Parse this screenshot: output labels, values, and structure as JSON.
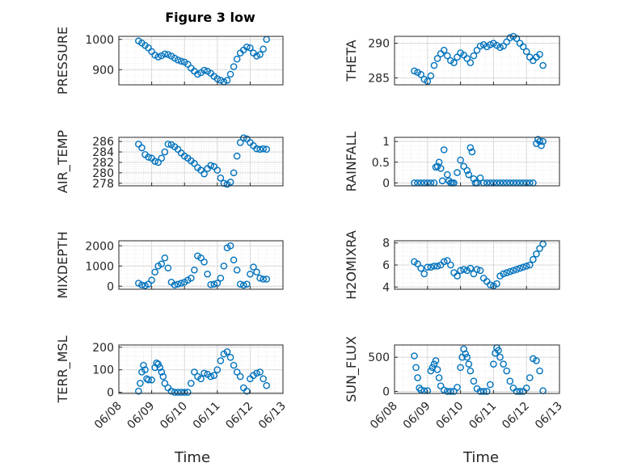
{
  "figure": {
    "title": "Figure 3 low",
    "xlabel": "Time",
    "marker_color": "#0072BD",
    "x_ticks": [
      "06/08",
      "06/09",
      "06/10",
      "06/11",
      "06/12",
      "06/13"
    ]
  },
  "chart_data": [
    {
      "type": "scatter",
      "name": "pressure",
      "ylabel": "PRESSURE",
      "ylim": [
        850,
        1010
      ],
      "yticks": [
        {
          "v": 900,
          "label": "900"
        },
        {
          "v": 1000,
          "label": "1000"
        }
      ],
      "xlim": [
        0,
        5
      ],
      "x": [
        0.6,
        0.7,
        0.8,
        0.9,
        1.0,
        1.1,
        1.2,
        1.3,
        1.4,
        1.5,
        1.6,
        1.7,
        1.8,
        1.9,
        2.0,
        2.1,
        2.2,
        2.3,
        2.4,
        2.5,
        2.6,
        2.7,
        2.8,
        2.9,
        3.0,
        3.1,
        3.2,
        3.3,
        3.4,
        3.5,
        3.6,
        3.7,
        3.8,
        3.9,
        4.0,
        4.1,
        4.2,
        4.3,
        4.4,
        4.5
      ],
      "y": [
        995,
        988,
        980,
        972,
        960,
        948,
        942,
        946,
        952,
        950,
        945,
        938,
        932,
        928,
        925,
        918,
        905,
        895,
        885,
        890,
        898,
        895,
        888,
        878,
        870,
        865,
        860,
        865,
        885,
        910,
        935,
        955,
        965,
        975,
        972,
        955,
        945,
        950,
        968,
        1000
      ]
    },
    {
      "type": "scatter",
      "name": "theta",
      "ylabel": "THETA",
      "ylim": [
        284,
        291
      ],
      "yticks": [
        {
          "v": 285,
          "label": "285"
        },
        {
          "v": 290,
          "label": "290"
        }
      ],
      "xlim": [
        0,
        5
      ],
      "x": [
        0.6,
        0.7,
        0.8,
        0.9,
        1.0,
        1.1,
        1.2,
        1.3,
        1.4,
        1.5,
        1.6,
        1.7,
        1.8,
        1.9,
        2.0,
        2.1,
        2.2,
        2.3,
        2.4,
        2.5,
        2.6,
        2.7,
        2.8,
        2.9,
        3.0,
        3.1,
        3.2,
        3.3,
        3.4,
        3.5,
        3.6,
        3.7,
        3.8,
        3.9,
        4.0,
        4.1,
        4.2,
        4.3,
        4.4,
        4.5
      ],
      "y": [
        286,
        285.8,
        285.5,
        284.8,
        284.5,
        285.3,
        286.8,
        287.8,
        288.5,
        289,
        288.2,
        287.5,
        287.2,
        288,
        288.6,
        288.3,
        287.8,
        287.2,
        288.2,
        289,
        289.6,
        289.8,
        289.5,
        289.8,
        290,
        289.7,
        289.4,
        289.6,
        290.2,
        290.8,
        291,
        290.7,
        290,
        289.5,
        288.8,
        288,
        287.5,
        288,
        288.4,
        286.8
      ]
    },
    {
      "type": "scatter",
      "name": "air-temp",
      "ylabel": "AIR_TEMP",
      "ylim": [
        277.5,
        286.8
      ],
      "yticks": [
        {
          "v": 278,
          "label": "278"
        },
        {
          "v": 280,
          "label": "280"
        },
        {
          "v": 282,
          "label": "282"
        },
        {
          "v": 284,
          "label": "284"
        },
        {
          "v": 286,
          "label": "286"
        }
      ],
      "xlim": [
        0,
        5
      ],
      "x": [
        0.6,
        0.7,
        0.8,
        0.9,
        1.0,
        1.1,
        1.2,
        1.3,
        1.4,
        1.5,
        1.6,
        1.7,
        1.8,
        1.9,
        2.0,
        2.1,
        2.2,
        2.3,
        2.4,
        2.5,
        2.6,
        2.7,
        2.8,
        2.9,
        3.0,
        3.1,
        3.2,
        3.3,
        3.4,
        3.5,
        3.6,
        3.7,
        3.8,
        3.9,
        4.0,
        4.1,
        4.2,
        4.3,
        4.4,
        4.5
      ],
      "y": [
        285.5,
        284.8,
        283.5,
        283,
        282.8,
        282.2,
        282,
        282.8,
        284,
        285.5,
        285.4,
        285,
        284.5,
        283.8,
        283.2,
        282.8,
        282.3,
        281.8,
        281,
        280.5,
        279.8,
        280.8,
        281.4,
        281.2,
        280.5,
        279,
        278,
        277.8,
        278.2,
        280,
        283.2,
        285.8,
        286.7,
        286.5,
        285.8,
        285.2,
        284.6,
        284.5,
        284.6,
        284.5
      ]
    },
    {
      "type": "scatter",
      "name": "rainfall",
      "ylabel": "RAINFALL",
      "ylim": [
        -0.07,
        1.1
      ],
      "yticks": [
        {
          "v": 0,
          "label": "0"
        },
        {
          "v": 0.5,
          "label": "0.5"
        },
        {
          "v": 1,
          "label": "1"
        }
      ],
      "xlim": [
        0,
        5
      ],
      "x": [
        0.6,
        0.7,
        0.8,
        0.9,
        1.0,
        1.1,
        1.2,
        1.25,
        1.3,
        1.35,
        1.4,
        1.45,
        1.5,
        1.6,
        1.65,
        1.7,
        1.75,
        1.8,
        1.9,
        2.0,
        2.1,
        2.2,
        2.25,
        2.3,
        2.35,
        2.4,
        2.45,
        2.5,
        2.6,
        2.7,
        2.8,
        2.9,
        3.0,
        3.1,
        3.2,
        3.3,
        3.4,
        3.5,
        3.6,
        3.7,
        3.8,
        3.9,
        4.0,
        4.1,
        4.2,
        4.3,
        4.35,
        4.4,
        4.45,
        4.5
      ],
      "y": [
        0,
        0,
        0,
        0,
        0,
        0,
        0,
        0.38,
        0.4,
        0.5,
        0.35,
        0.05,
        0.8,
        0.2,
        0.05,
        0,
        0,
        0,
        0.25,
        0.55,
        0.4,
        0.3,
        0.2,
        0.85,
        0.75,
        0.1,
        0,
        0,
        0.12,
        0,
        0,
        0,
        0,
        0,
        0,
        0,
        0,
        0,
        0,
        0,
        0,
        0,
        0,
        0,
        0,
        0.95,
        1.05,
        1.0,
        0.9,
        1.0
      ]
    },
    {
      "type": "scatter",
      "name": "mixdepth",
      "ylabel": "MIXDEPTH",
      "ylim": [
        -150,
        2250
      ],
      "yticks": [
        {
          "v": 0,
          "label": "0"
        },
        {
          "v": 1000,
          "label": "1000"
        },
        {
          "v": 2000,
          "label": "2000"
        }
      ],
      "xlim": [
        0,
        5
      ],
      "x": [
        0.6,
        0.7,
        0.8,
        0.9,
        1.0,
        1.1,
        1.2,
        1.3,
        1.4,
        1.5,
        1.6,
        1.7,
        1.8,
        1.9,
        2.0,
        2.1,
        2.2,
        2.3,
        2.4,
        2.5,
        2.6,
        2.7,
        2.8,
        2.9,
        3.0,
        3.1,
        3.2,
        3.3,
        3.4,
        3.5,
        3.6,
        3.7,
        3.8,
        3.9,
        4.0,
        4.1,
        4.2,
        4.3,
        4.4,
        4.5
      ],
      "y": [
        150,
        60,
        30,
        100,
        300,
        700,
        1000,
        1100,
        1400,
        900,
        200,
        60,
        100,
        150,
        200,
        300,
        400,
        800,
        1500,
        1400,
        1200,
        600,
        80,
        100,
        150,
        400,
        1000,
        1900,
        2000,
        1300,
        800,
        100,
        50,
        100,
        600,
        950,
        700,
        400,
        350,
        350
      ]
    },
    {
      "type": "scatter",
      "name": "h2omixra",
      "ylabel": "H2OMIXRA",
      "ylim": [
        3.8,
        8.2
      ],
      "yticks": [
        {
          "v": 4,
          "label": "4"
        },
        {
          "v": 6,
          "label": "6"
        },
        {
          "v": 8,
          "label": "8"
        }
      ],
      "xlim": [
        0,
        5
      ],
      "x": [
        0.6,
        0.7,
        0.8,
        0.9,
        1.0,
        1.1,
        1.2,
        1.3,
        1.4,
        1.5,
        1.6,
        1.7,
        1.8,
        1.9,
        2.0,
        2.1,
        2.2,
        2.3,
        2.4,
        2.5,
        2.6,
        2.7,
        2.8,
        2.9,
        3.0,
        3.1,
        3.2,
        3.3,
        3.4,
        3.5,
        3.6,
        3.7,
        3.8,
        3.9,
        4.0,
        4.1,
        4.2,
        4.3,
        4.4,
        4.5
      ],
      "y": [
        6.3,
        6.1,
        5.7,
        5.2,
        5.8,
        5.8,
        5.9,
        5.9,
        6.0,
        6.3,
        6.4,
        6.0,
        5.3,
        5.0,
        5.5,
        5.6,
        5.5,
        5.7,
        5.2,
        5.6,
        5.5,
        4.8,
        4.5,
        4.2,
        4.1,
        4.3,
        5.0,
        5.2,
        5.3,
        5.4,
        5.5,
        5.6,
        5.7,
        5.8,
        5.9,
        6.0,
        6.5,
        7.0,
        7.5,
        7.9
      ]
    },
    {
      "type": "scatter",
      "name": "terr-msl",
      "ylabel": "TERR_MSL",
      "ylim": [
        -5,
        210
      ],
      "yticks": [
        {
          "v": 0,
          "label": "0"
        },
        {
          "v": 100,
          "label": "100"
        },
        {
          "v": 200,
          "label": "200"
        }
      ],
      "xlim": [
        0,
        5
      ],
      "x": [
        0.6,
        0.65,
        0.7,
        0.75,
        0.8,
        0.85,
        0.9,
        1.0,
        1.1,
        1.15,
        1.2,
        1.25,
        1.3,
        1.35,
        1.4,
        1.5,
        1.6,
        1.7,
        1.8,
        1.9,
        2.0,
        2.1,
        2.2,
        2.3,
        2.4,
        2.5,
        2.6,
        2.7,
        2.8,
        2.9,
        3.0,
        3.1,
        3.2,
        3.3,
        3.4,
        3.5,
        3.6,
        3.7,
        3.8,
        3.9,
        4.0,
        4.1,
        4.2,
        4.3,
        4.4,
        4.5
      ],
      "y": [
        5,
        40,
        90,
        120,
        100,
        60,
        55,
        55,
        110,
        130,
        125,
        110,
        90,
        70,
        40,
        20,
        5,
        0,
        0,
        0,
        0,
        0,
        40,
        90,
        70,
        60,
        85,
        80,
        70,
        75,
        100,
        140,
        170,
        180,
        155,
        120,
        90,
        70,
        20,
        5,
        60,
        75,
        85,
        90,
        60,
        30
      ]
    },
    {
      "type": "scatter",
      "name": "sun-flux",
      "ylabel": "SUN_FLUX",
      "ylim": [
        -30,
        680
      ],
      "yticks": [
        {
          "v": 0,
          "label": "0"
        },
        {
          "v": 500,
          "label": "500"
        }
      ],
      "xlim": [
        0,
        5
      ],
      "x": [
        0.6,
        0.65,
        0.7,
        0.75,
        0.8,
        0.9,
        1.0,
        1.1,
        1.15,
        1.2,
        1.25,
        1.3,
        1.35,
        1.4,
        1.5,
        1.6,
        1.7,
        1.8,
        1.9,
        2.0,
        2.05,
        2.1,
        2.15,
        2.2,
        2.25,
        2.3,
        2.4,
        2.5,
        2.6,
        2.7,
        2.8,
        2.9,
        3.0,
        3.05,
        3.1,
        3.15,
        3.2,
        3.3,
        3.4,
        3.5,
        3.6,
        3.7,
        3.8,
        3.9,
        4.0,
        4.1,
        4.2,
        4.3,
        4.4,
        4.5
      ],
      "y": [
        520,
        350,
        200,
        50,
        20,
        10,
        10,
        300,
        350,
        400,
        450,
        320,
        200,
        80,
        20,
        0,
        0,
        0,
        60,
        350,
        500,
        620,
        550,
        500,
        400,
        300,
        150,
        40,
        0,
        0,
        0,
        100,
        400,
        560,
        640,
        600,
        500,
        400,
        300,
        150,
        50,
        0,
        0,
        0,
        50,
        200,
        480,
        450,
        300,
        10
      ]
    }
  ]
}
